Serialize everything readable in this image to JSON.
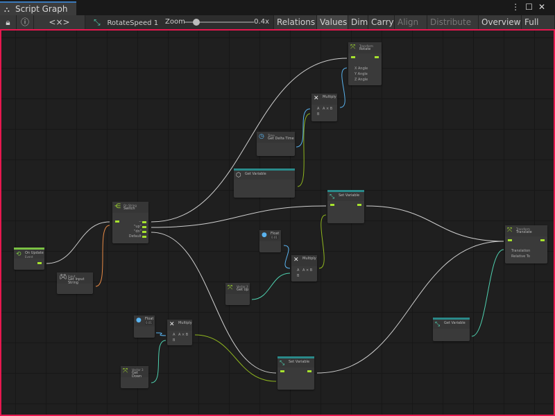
{
  "window": {
    "title": "Script Graph",
    "tab_icon": "hierarchy-icon",
    "menu_icon": "kebab-icon",
    "maximize_icon": "maximize-icon",
    "close_icon": "close-icon"
  },
  "toolbar": {
    "lock_icon": "lock-icon",
    "info_icon": "info-icon",
    "embed_label": "<×>",
    "graph_name": "RotateSpeed 1",
    "zoom_label": "Zoom",
    "zoom_value": "0.4x",
    "zoom_fraction": 0.1,
    "buttons": [
      {
        "label": "Relations",
        "enabled": true
      },
      {
        "label": "Values",
        "enabled": true,
        "active": true
      },
      {
        "label": "Dim",
        "enabled": true
      },
      {
        "label": "Carry",
        "enabled": true
      },
      {
        "label": "Align ▾",
        "enabled": false
      },
      {
        "label": "Distribute ▾",
        "enabled": false
      },
      {
        "label": "Overview",
        "enabled": true
      },
      {
        "label": "Full Scre",
        "enabled": true
      }
    ]
  },
  "colors": {
    "flow": "#a6e22e",
    "float": "#5ab4f0",
    "vector3": "#4fd1b0",
    "object": "#ffffff",
    "string": "#e88a45",
    "selection": "#e8174f"
  },
  "nodes": {
    "on_update": {
      "title": "On Update",
      "sub": "Event"
    },
    "get_input": {
      "sub": "Input",
      "title": "Get Input String"
    },
    "switch": {
      "title": "Switch",
      "sub": "On String",
      "ports": [
        "--",
        "\"up\"",
        "\"dn\"",
        "Default"
      ]
    },
    "time": {
      "sub": "Time",
      "title": "Get Delta Time"
    },
    "get_var1": {
      "title": "Get Variable"
    },
    "multiply1": {
      "title": "Multiply",
      "a": "A",
      "out": "A × B",
      "b": "B"
    },
    "rotate": {
      "sub": "Transform",
      "title": "Rotate",
      "ports": [
        "X Angle",
        "Y Angle",
        "Z Angle"
      ]
    },
    "set_var1": {
      "title": "Set Variable"
    },
    "float1": {
      "title": "Float",
      "value": "0.01"
    },
    "multiply2": {
      "title": "Multiply",
      "a": "A",
      "out": "A × B",
      "b": "B"
    },
    "get_up": {
      "sub": "Vector 3",
      "title": "Get Up"
    },
    "float2": {
      "title": "Float",
      "value": "0.01"
    },
    "multiply3": {
      "title": "Multiply",
      "a": "A",
      "out": "A × B",
      "b": "B"
    },
    "get_down": {
      "sub": "Vector 3",
      "title": "Get Down"
    },
    "set_var2": {
      "title": "Set Variable"
    },
    "translate": {
      "sub": "Transform",
      "title": "Translate",
      "ports": [
        "Translation",
        "Relative To"
      ]
    },
    "get_var2": {
      "title": "Get Variable"
    }
  }
}
